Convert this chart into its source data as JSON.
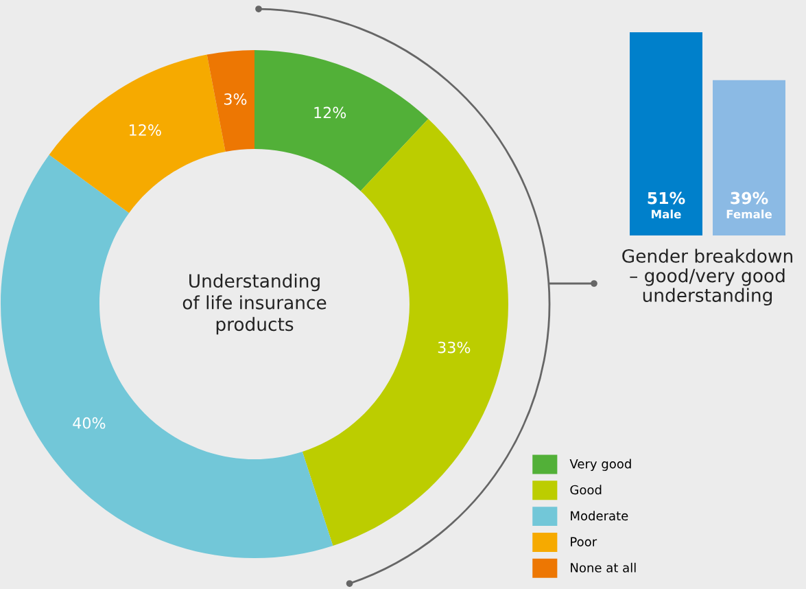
{
  "chart_data": [
    {
      "type": "donut",
      "title": "Understanding\nof life insurance\nproducts",
      "categories": [
        "Very good",
        "Good",
        "Moderate",
        "Poor",
        "None at all"
      ],
      "values": [
        12,
        33,
        40,
        12,
        3
      ],
      "colors": [
        "#52b038",
        "#bccd00",
        "#72c7d8",
        "#f6aa00",
        "#ed7703"
      ],
      "value_labels": [
        "12%",
        "33%",
        "40%",
        "12%",
        "3%"
      ],
      "legend": "bottom right"
    },
    {
      "type": "bar",
      "xlabel": "Gender breakdown\n– good/very good\nunderstanding",
      "categories": [
        "Male",
        "Female"
      ],
      "values": [
        51,
        39
      ],
      "colors": [
        "#0080cb",
        "#8bbae4"
      ],
      "value_labels": [
        "51%",
        "39%"
      ],
      "tick_labels": false
    }
  ]
}
